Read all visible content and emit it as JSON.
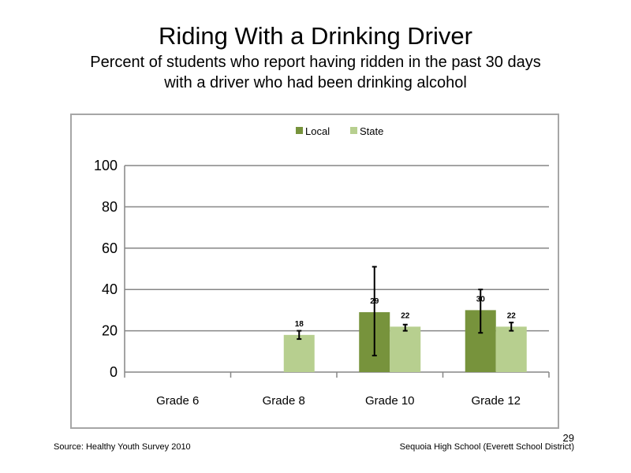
{
  "slide": {
    "title": "Riding With a Drinking Driver",
    "subtitle_line1": "Percent of students who report having ridden in the past 30 days",
    "subtitle_line2": "with a driver who had been drinking alcohol",
    "source": "Source: Healthy Youth Survey 2010",
    "school": "Sequoia High School (Everett School District)",
    "page_number": "29"
  },
  "chart_data": {
    "type": "bar",
    "categories": [
      "Grade 6",
      "Grade 8",
      "Grade 10",
      "Grade 12"
    ],
    "series": [
      {
        "name": "Local",
        "color": "#77933c",
        "values": [
          null,
          null,
          29,
          30
        ],
        "labels": [
          "",
          "",
          "29",
          "30"
        ],
        "error_low": [
          null,
          null,
          8,
          19
        ],
        "error_high": [
          null,
          null,
          51,
          40
        ]
      },
      {
        "name": "State",
        "color": "#b7cf8f",
        "values": [
          null,
          18,
          22,
          22
        ],
        "labels": [
          "",
          "18",
          "22",
          "22"
        ],
        "error_low": [
          null,
          16,
          20,
          20
        ],
        "error_high": [
          null,
          20,
          23,
          24
        ]
      }
    ],
    "yticks": [
      "0",
      "20",
      "40",
      "60",
      "80",
      "100"
    ],
    "ylim": [
      0,
      100
    ],
    "grid": true,
    "legend_position": "top"
  }
}
